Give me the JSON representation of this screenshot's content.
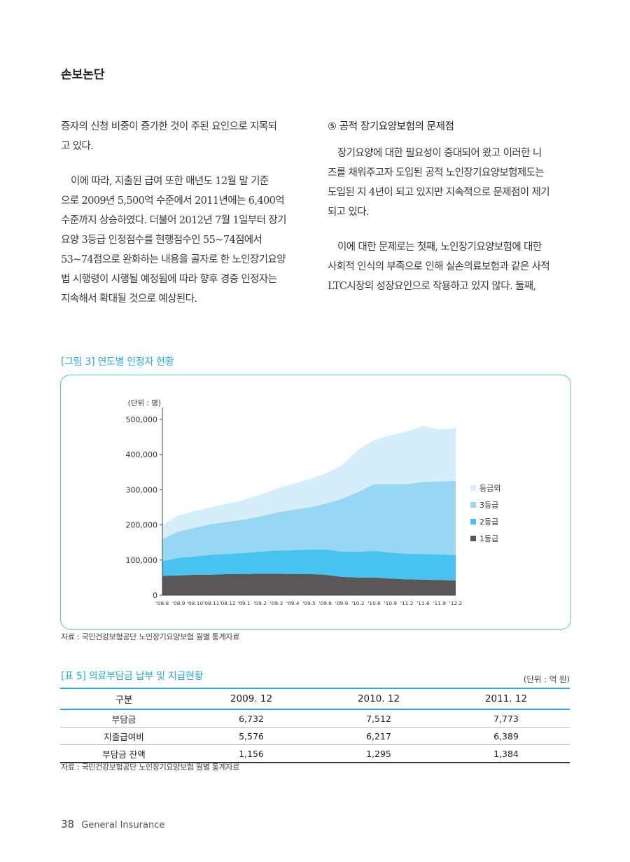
{
  "header": {
    "title": "손보논단"
  },
  "left_column": {
    "paragraphs": [
      {
        "lines": [
          "증자의 신청 비중이 증가한 것이 주된 요인으로 지목되",
          "고 있다."
        ]
      },
      {
        "lines": [
          "이에 따라, 지출된 급여 또한 매년도 12월 말 기준",
          "으로 2009년 5,500억 수준에서 2011년에는 6,400억",
          "수준까지 상승하였다. 더불어 2012년 7월 1일부터 장기",
          "요양 3등급 인정점수를 현행점수인 55~74점에서",
          "53~74점으로 완화하는 내용을 골자로 한 노인장기요양",
          "법 시행령이 시행될 예정됨에 따라 향후 경증 인정자는",
          "지속해서 확대될 것으로 예상된다."
        ]
      }
    ]
  },
  "right_column": {
    "heading": "⑤ 공적 장기요양보험의 문제점",
    "paragraphs": [
      {
        "lines": [
          "장기요양에 대한 필요성이 증대되어 왔고 이러한 니",
          "즈를 채워주고자 도입된 공적 노인장기요양보험제도는",
          "도입된 지 4년이 되고 있지만 지속적으로 문제점이 제기",
          "되고 있다."
        ]
      },
      {
        "lines": [
          "이에 대한 문제로는 첫째, 노인장기요양보험에 대한",
          "사회적 인식의 부족으로 인해 실손의료보험과 같은 사적",
          "LTC시장의 성장요인으로 작용하고 있지 않다. 둘째,"
        ]
      }
    ]
  },
  "figure": {
    "caption": "[그림 3] 연도별 인정자 현황",
    "source": "자료 : 국민건강보험공단 노인장기요양보험 월별 통계자료"
  },
  "chart_data": {
    "type": "area",
    "stacked": true,
    "unit_label": "(단위 : 명)",
    "x": [
      "'08.8",
      "'08.9",
      "'08.10",
      "'08.11",
      "'08.12",
      "'09.1",
      "'09.2",
      "'09.3",
      "'09.4",
      "'09.5",
      "'09.6",
      "'09.9",
      "'10.2",
      "'10.6",
      "'10.9",
      "'11.2",
      "'11.6",
      "'11.9",
      "'12.2"
    ],
    "ylim": [
      0,
      500000
    ],
    "yticks": [
      0,
      100000,
      200000,
      300000,
      400000,
      500000
    ],
    "ytick_labels": [
      "0",
      "100,000",
      "200,000",
      "300,000",
      "400,000",
      "500,000"
    ],
    "grid": false,
    "legend_position": "right",
    "series": [
      {
        "name": "1등급",
        "color": "#595757",
        "values": [
          55000,
          56000,
          58000,
          58000,
          60000,
          60000,
          61000,
          61000,
          60000,
          60000,
          58000,
          52000,
          50000,
          50000,
          47000,
          45000,
          44000,
          43000,
          42000
        ]
      },
      {
        "name": "2등급",
        "color": "#48c2ee",
        "values": [
          42000,
          50000,
          52000,
          57000,
          57000,
          60000,
          63000,
          66000,
          68000,
          70000,
          72000,
          72000,
          73000,
          76000,
          74000,
          73000,
          73000,
          73000,
          72000
        ]
      },
      {
        "name": "3등급",
        "color": "#97d7f3",
        "values": [
          63000,
          75000,
          82000,
          87000,
          92000,
          95000,
          100000,
          108000,
          115000,
          120000,
          130000,
          150000,
          170000,
          190000,
          195000,
          198000,
          205000,
          208000,
          211000
        ]
      },
      {
        "name": "등급외",
        "color": "#d6eef9",
        "values": [
          40000,
          46000,
          47000,
          49000,
          52000,
          56000,
          62000,
          68000,
          74000,
          80000,
          86000,
          95000,
          120000,
          125000,
          140000,
          150000,
          160000,
          147000,
          151000
        ]
      }
    ]
  },
  "table": {
    "caption": "[표 5] 의료부담금 납부 및 지급현황",
    "unit": "(단위 : 억 원)",
    "headers": [
      "구분",
      "2009. 12",
      "2010. 12",
      "2011. 12"
    ],
    "rows": [
      [
        "부담금",
        "6,732",
        "7,512",
        "7,773"
      ],
      [
        "지출급여비",
        "5,576",
        "6,217",
        "6,389"
      ],
      [
        "부담금 잔액",
        "1,156",
        "1,295",
        "1,384"
      ]
    ],
    "source": "자료 : 국민건강보험공단 노인장기요양보험 월별 통계자료"
  },
  "footer": {
    "page_number": "38",
    "publication": "General Insurance"
  }
}
